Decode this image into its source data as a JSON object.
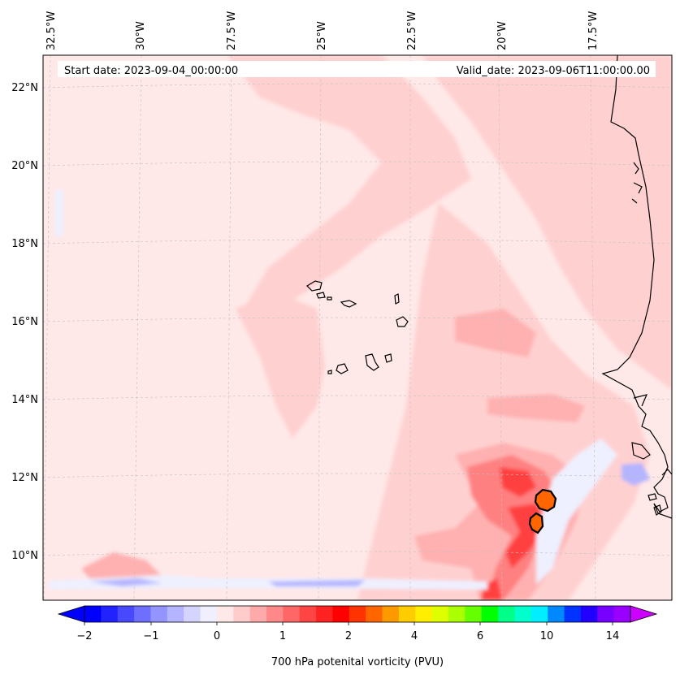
{
  "header": {
    "start_date": "Start date: 2023-09-04_00:00:00",
    "valid_date": "Valid_date: 2023-09-06T11:00:00.00"
  },
  "axes": {
    "longitude_labels": [
      "32.5°W",
      "30°W",
      "27.5°W",
      "25°W",
      "22.5°W",
      "20°W",
      "17.5°W"
    ],
    "latitude_labels": [
      "22°N",
      "20°N",
      "18°N",
      "16°N",
      "14°N",
      "12°N",
      "10°N"
    ]
  },
  "colorbar": {
    "label": "700 hPa potenital vorticity (PVU)",
    "tick_labels": [
      "−2",
      "−1",
      "0",
      "1",
      "2",
      "4",
      "6",
      "10",
      "14"
    ],
    "colors": [
      "#0000ff",
      "#2222ff",
      "#4848ff",
      "#6e6eff",
      "#9494ff",
      "#b4b4ff",
      "#d4d4ff",
      "#efefff",
      "#ffe8e8",
      "#ffcccc",
      "#ffaaaa",
      "#ff8888",
      "#ff6666",
      "#ff4444",
      "#ff2222",
      "#ff0000",
      "#ff3300",
      "#ff6600",
      "#ff9900",
      "#ffcc00",
      "#ffee00",
      "#ddff00",
      "#aaff00",
      "#66ff00",
      "#00ff00",
      "#00ff88",
      "#00ffcc",
      "#00eeff",
      "#0088ff",
      "#0033ff",
      "#2200ff",
      "#7700ff",
      "#9900ff"
    ],
    "under_color": "#0000ff",
    "over_color": "#cc00ff"
  },
  "field_colors": {
    "background": "#ffe8e8",
    "light": "#ffd0d0",
    "medium": "#ffb0b0",
    "strong": "#ff8080",
    "intense": "#ff4040",
    "peak": "#ff2020",
    "core": "#ff6600",
    "negative": "#eef0ff",
    "negative_strong": "#b4b4ff"
  }
}
